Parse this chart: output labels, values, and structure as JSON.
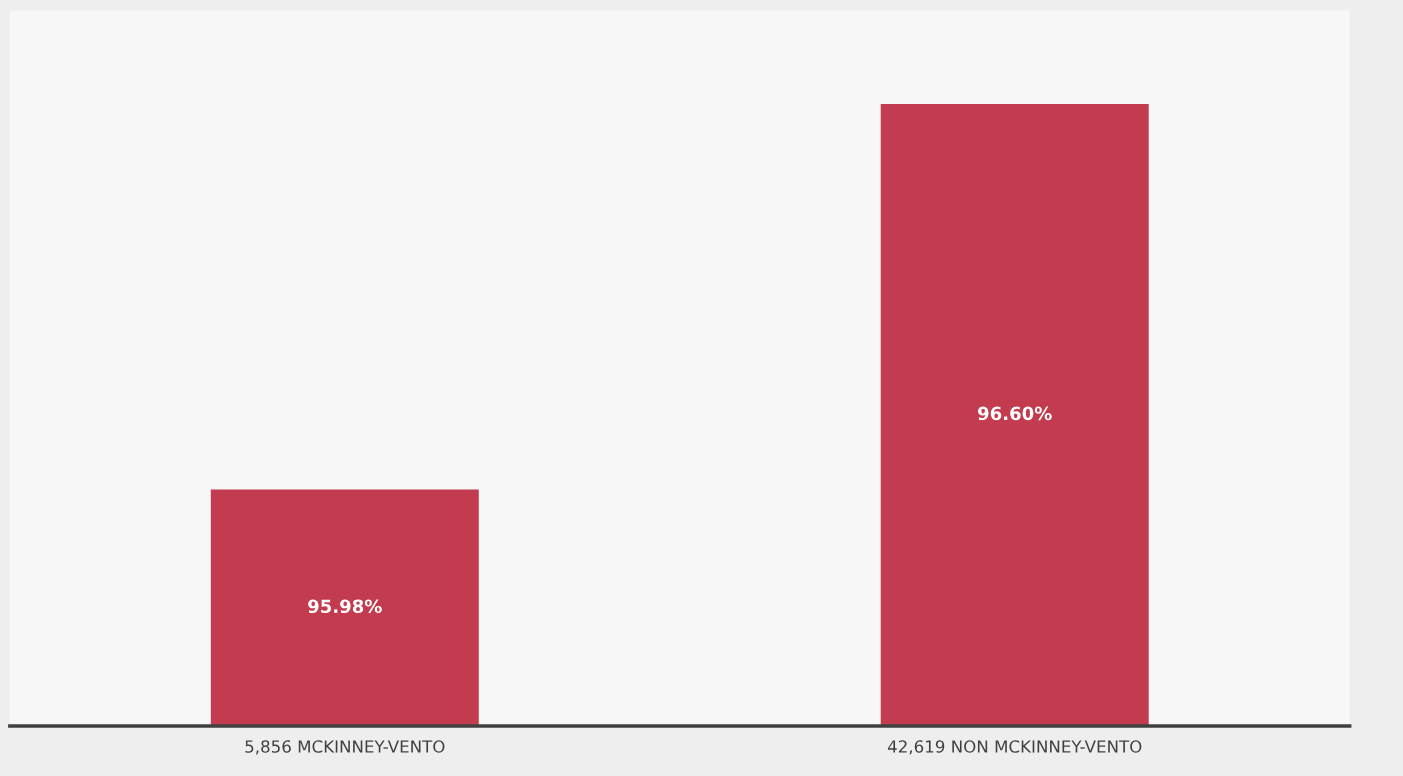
{
  "chart_data": {
    "type": "bar",
    "categories": [
      "5,856 MCKINNEY-VENTO",
      "42,619 NON MCKINNEY-VENTO"
    ],
    "values": [
      95.98,
      96.6
    ],
    "value_labels": [
      "95.98%",
      "96.60%"
    ],
    "color": "#c23b4e",
    "ylim": [
      95.6,
      96.75
    ],
    "tick_labels": "x",
    "grid": false,
    "legend": false
  }
}
